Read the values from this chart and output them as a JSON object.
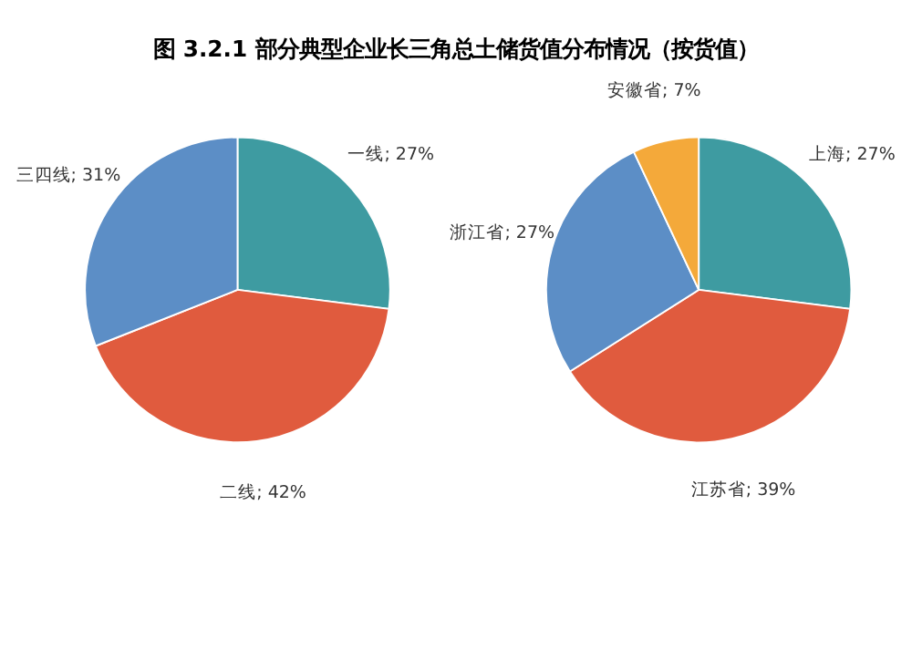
{
  "chart_data": [
    {
      "type": "pie",
      "title": "图 3.2.1   部分典型企业长三角总土储货值分布情况（按货值）",
      "categories": [
        "一线",
        "二线",
        "三四线"
      ],
      "values": [
        27,
        42,
        31
      ],
      "value_labels": [
        "27%",
        "42%",
        "31%"
      ],
      "colors": [
        "#3e9ba1",
        "#e05b3e",
        "#5c8ec6"
      ],
      "legend": false
    },
    {
      "type": "pie",
      "categories": [
        "上海",
        "江苏省",
        "浙江省",
        "安徽省"
      ],
      "values": [
        27,
        39,
        27,
        7
      ],
      "value_labels": [
        "27%",
        "39%",
        "27%",
        "7%"
      ],
      "colors": [
        "#3e9ba1",
        "#e05b3e",
        "#5c8ec6",
        "#f4a93a"
      ],
      "legend": false
    }
  ]
}
